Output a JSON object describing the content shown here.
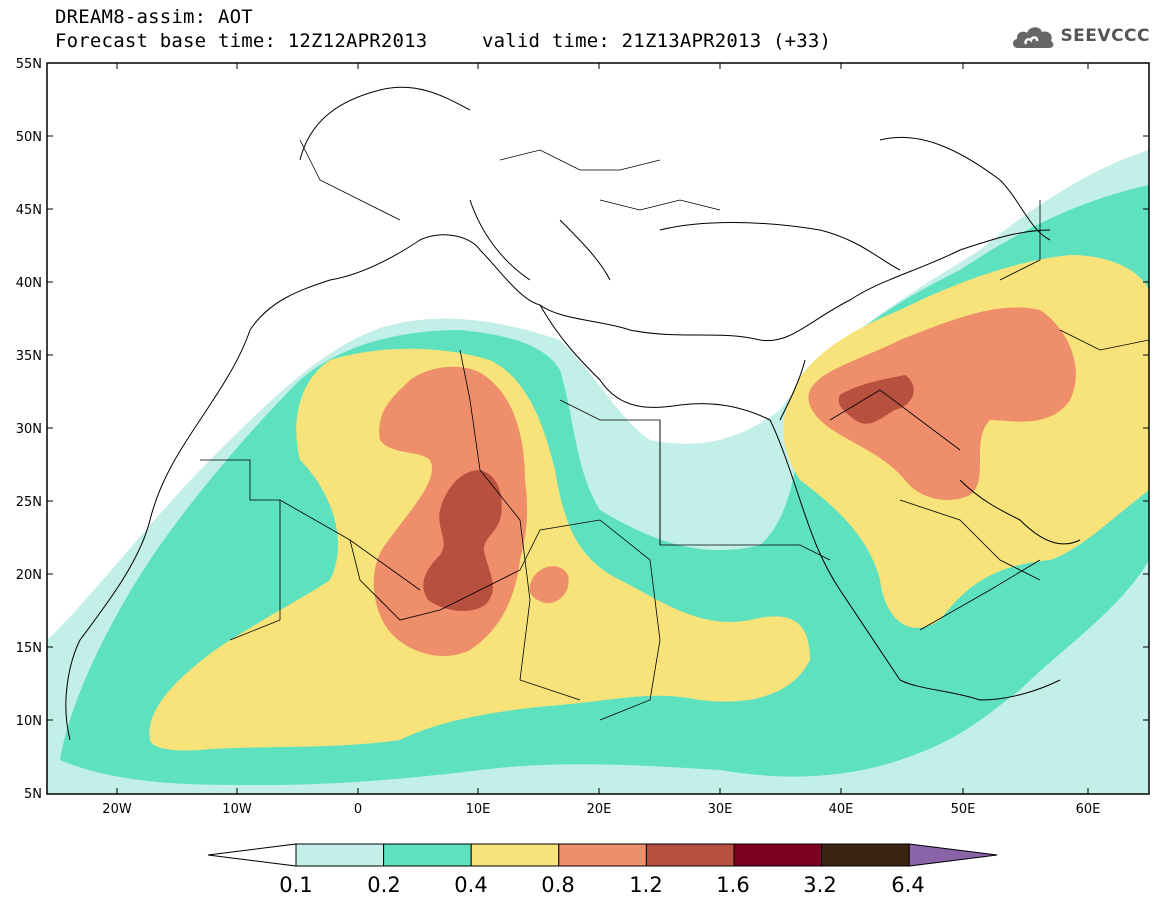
{
  "header": {
    "line1": "DREAM8-assim: AOT",
    "line2_base": "Forecast base time: 12Z12APR2013",
    "line2_valid": "valid time: 21Z13APR2013 (+33)"
  },
  "logo": {
    "text": "SEEVCCC",
    "icon": "cloud-icon"
  },
  "map": {
    "lat_labels": [
      "55N",
      "50N",
      "45N",
      "40N",
      "35N",
      "30N",
      "25N",
      "20N",
      "15N",
      "10N",
      "5N"
    ],
    "lon_labels": [
      "20W",
      "10W",
      "0",
      "10E",
      "20E",
      "30E",
      "40E",
      "50E",
      "60E"
    ]
  },
  "colorbar": {
    "thresholds": [
      "0.1",
      "0.2",
      "0.4",
      "0.8",
      "1.2",
      "1.6",
      "3.2",
      "6.4"
    ],
    "colors": [
      "#ffffff",
      "#c2efe7",
      "#5ee1bf",
      "#f7e37a",
      "#ee8e6a",
      "#b8503f",
      "#7d0022",
      "#3a2412",
      "#8a64a8"
    ]
  }
}
